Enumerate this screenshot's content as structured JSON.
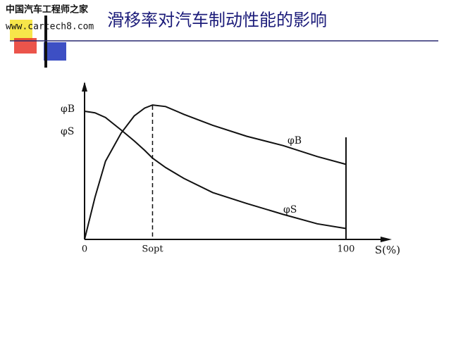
{
  "logo": {
    "name": "中国汽车工程师之家",
    "url": "www.cartech8.com"
  },
  "chart_data": {
    "type": "line",
    "title": "滑移率对汽车制动性能的影响",
    "x_label": "S(%)",
    "x": [
      0,
      4,
      8,
      14,
      19,
      23,
      26,
      31,
      38,
      49,
      62,
      76,
      89,
      100
    ],
    "xlim": [
      0,
      100
    ],
    "xticks": [
      0,
      {
        "value": 26,
        "label": "Sopt"
      },
      100
    ],
    "ylim": [
      0,
      1
    ],
    "series": [
      {
        "name": "φB",
        "color": "#111111",
        "values": [
          0,
          0.27,
          0.5,
          0.68,
          0.79,
          0.84,
          0.86,
          0.85,
          0.8,
          0.73,
          0.66,
          0.6,
          0.53,
          0.48
        ]
      },
      {
        "name": "φS",
        "color": "#111111",
        "values": [
          0.82,
          0.81,
          0.78,
          0.7,
          0.63,
          0.57,
          0.52,
          0.46,
          0.39,
          0.3,
          0.23,
          0.16,
          0.1,
          0.07
        ]
      }
    ]
  }
}
